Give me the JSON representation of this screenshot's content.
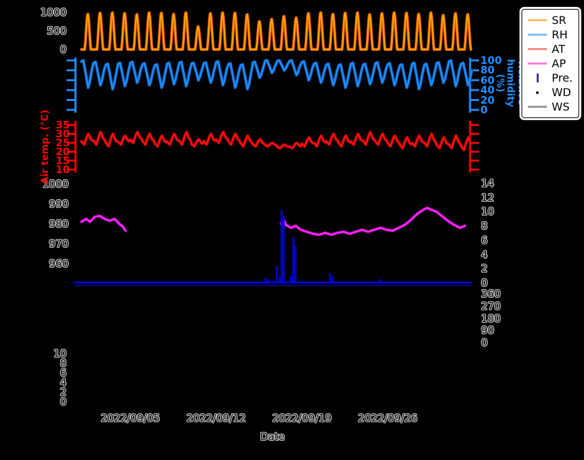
{
  "figure": {
    "background": "#000000",
    "hollow_text_outline": "#c4c4c4",
    "legend": {
      "background": "#ffffff",
      "border_color": "#000000",
      "text_color": "#000000",
      "entries": [
        {
          "label": "SR",
          "type": "line",
          "color": "#fbbf6b"
        },
        {
          "label": "RH",
          "type": "line",
          "color": "#8bbdf2"
        },
        {
          "label": "AT",
          "type": "line",
          "color": "#f68b83"
        },
        {
          "label": "AP",
          "type": "line",
          "color": "#fb7fd4"
        },
        {
          "label": "Pre.",
          "type": "vbar",
          "color": "#3b3b9e"
        },
        {
          "label": "WD",
          "type": "dot",
          "color": "#1a1a1a"
        },
        {
          "label": "WS",
          "type": "line",
          "color": "#9a9a9a"
        }
      ]
    }
  },
  "chart_data": {
    "type": "line",
    "title": "",
    "xlabel": "Date",
    "x_start_date": "2022/09/01",
    "x_tick_labels": [
      "2022/09/05",
      "2022/09/12",
      "2022/09/19",
      "2022/09/26"
    ],
    "x_tick_days": [
      4,
      11,
      18,
      25
    ],
    "x_range_days": [
      0,
      32
    ],
    "grid": false,
    "legend_position": "upper right outside",
    "series": [
      {
        "name": "SR",
        "description": "Solar radiation, daily spikes",
        "color": "#ffa500",
        "ylim": [
          0,
          1000
        ],
        "yticks": [
          1000,
          500,
          0
        ],
        "daily_peaks": [
          960,
          990,
          1000,
          980,
          950,
          1000,
          990,
          960,
          1000,
          620,
          980,
          1000,
          990,
          950,
          760,
          820,
          900,
          860,
          980,
          1000,
          960,
          990,
          1000,
          950,
          980,
          1000,
          990,
          960,
          1000,
          930,
          980,
          950
        ]
      },
      {
        "name": "RH",
        "label": "Relative humidity (%)",
        "color": "#1e90ff",
        "ylim": [
          0,
          100
        ],
        "yticks": [
          100,
          80,
          60,
          40,
          20,
          0
        ],
        "daily_max": [
          100,
          97,
          93,
          95,
          97,
          94,
          92,
          95,
          97,
          95,
          96,
          98,
          94,
          92,
          97,
          100,
          100,
          100,
          98,
          95,
          93,
          92,
          95,
          93,
          96,
          94,
          92,
          95,
          93,
          96,
          100,
          95
        ],
        "daily_min": [
          45,
          50,
          42,
          48,
          55,
          50,
          45,
          52,
          48,
          60,
          55,
          50,
          45,
          42,
          65,
          75,
          80,
          70,
          60,
          55,
          50,
          45,
          48,
          52,
          55,
          50,
          45,
          42,
          50,
          55,
          48,
          50
        ]
      },
      {
        "name": "AT",
        "label": "Air temp. (°C)",
        "color": "#ff0000",
        "ylim": [
          10,
          35
        ],
        "yticks": [
          35,
          30,
          25,
          20,
          15,
          10
        ],
        "daily_max": [
          30,
          31,
          30,
          29,
          31,
          30,
          29,
          30,
          31,
          27,
          30,
          31,
          30,
          29,
          27,
          25,
          24,
          25,
          28,
          29,
          30,
          29,
          30,
          31,
          30,
          29,
          28,
          29,
          30,
          28,
          29,
          28
        ],
        "daily_min": [
          24,
          24,
          23,
          24,
          25,
          24,
          23,
          24,
          24,
          23,
          24,
          25,
          24,
          23,
          23,
          23,
          22,
          22,
          23,
          23,
          24,
          23,
          24,
          24,
          24,
          23,
          22,
          23,
          23,
          22,
          22,
          21
        ]
      },
      {
        "name": "AP",
        "description": "Air pressure (hPa), gap in record between day 3.6 and day 16.3",
        "color": "#ff00ff",
        "yticks": [
          1000,
          990,
          980,
          970,
          960
        ],
        "points_hPa": [
          [
            0,
            981
          ],
          [
            0.4,
            982.5
          ],
          [
            0.7,
            981
          ],
          [
            1.1,
            983.5
          ],
          [
            1.5,
            984
          ],
          [
            1.9,
            982.5
          ],
          [
            2.3,
            981.5
          ],
          [
            2.7,
            982.5
          ],
          [
            3.1,
            980
          ],
          [
            3.4,
            978.5
          ],
          [
            3.6,
            976.5
          ],
          null,
          [
            16.3,
            980
          ],
          [
            16.45,
            983
          ],
          [
            16.7,
            979.5
          ],
          [
            17.1,
            978
          ],
          [
            17.5,
            979
          ],
          [
            17.9,
            977
          ],
          [
            18.4,
            976
          ],
          [
            18.9,
            975
          ],
          [
            19.4,
            974.5
          ],
          [
            19.9,
            975.5
          ],
          [
            20.4,
            974.5
          ],
          [
            20.9,
            975.5
          ],
          [
            21.4,
            976
          ],
          [
            21.9,
            975
          ],
          [
            22.4,
            976
          ],
          [
            22.9,
            977
          ],
          [
            23.4,
            976
          ],
          [
            23.9,
            977
          ],
          [
            24.4,
            978
          ],
          [
            24.9,
            977
          ],
          [
            25.4,
            976.5
          ],
          [
            25.9,
            978
          ],
          [
            26.4,
            979.5
          ],
          [
            26.9,
            982
          ],
          [
            27.4,
            985
          ],
          [
            27.9,
            987
          ],
          [
            28.2,
            988
          ],
          [
            28.6,
            987
          ],
          [
            29,
            986
          ],
          [
            29.4,
            984
          ],
          [
            29.9,
            981.5
          ],
          [
            30.4,
            979.5
          ],
          [
            30.9,
            978
          ],
          [
            31.3,
            979
          ]
        ]
      },
      {
        "name": "Pre.",
        "description": "Precipitation bars (mm)",
        "color": "#0000cd",
        "ylim": [
          0,
          14
        ],
        "yticks": [
          14,
          12,
          10,
          8,
          6,
          4,
          2,
          0
        ],
        "events_mm": [
          [
            15.05,
            0.7
          ],
          [
            15.3,
            0.5
          ],
          [
            15.6,
            0.3
          ],
          [
            15.95,
            2.4
          ],
          [
            16.2,
            0.8
          ],
          [
            16.35,
            10.2
          ],
          [
            16.5,
            9.4
          ],
          [
            17.1,
            1.0
          ],
          [
            17.3,
            6.4
          ],
          [
            17.45,
            5.2
          ],
          [
            20.3,
            1.4
          ],
          [
            20.5,
            0.9
          ],
          [
            24.4,
            0.5
          ]
        ]
      },
      {
        "name": "WD",
        "description": "Wind direction (deg), markers not visible against background",
        "color": "#000000",
        "yticks": [
          360,
          270,
          180,
          90,
          0
        ],
        "values": []
      },
      {
        "name": "WS",
        "description": "Wind speed (m/s), line not visible against background",
        "color": "#808080",
        "yticks": [
          10,
          8,
          6,
          4,
          2,
          0
        ],
        "values": []
      }
    ]
  }
}
